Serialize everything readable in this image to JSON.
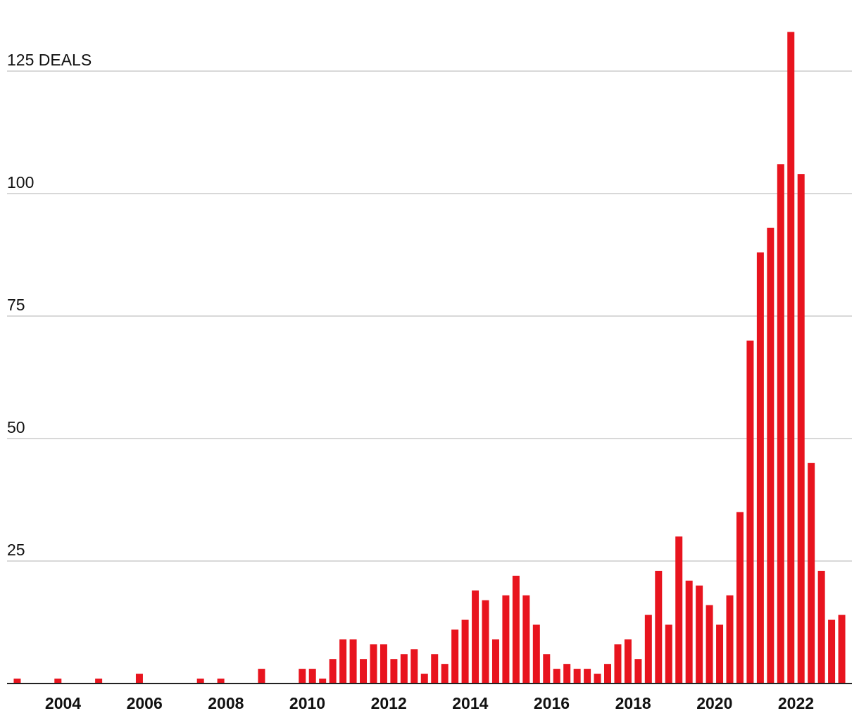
{
  "chart_data": {
    "type": "bar",
    "title": "",
    "xlabel": "",
    "ylabel": "",
    "y_unit_label": "DEALS",
    "ylim": [
      0,
      125
    ],
    "yticks": [
      25,
      50,
      75,
      100,
      125
    ],
    "ytick_labels": [
      "25",
      "50",
      "75",
      "100",
      "125 DEALS"
    ],
    "xlim": [
      2002.75,
      2023.5
    ],
    "xticks": [
      2004,
      2006,
      2008,
      2010,
      2012,
      2014,
      2016,
      2018,
      2020,
      2022
    ],
    "xtick_labels": [
      "2004",
      "2006",
      "2008",
      "2010",
      "2012",
      "2014",
      "2016",
      "2018",
      "2020",
      "2022"
    ],
    "grid": true,
    "bar_color": "#e8141e",
    "x": [
      2003.0,
      2003.25,
      2003.5,
      2003.75,
      2004.0,
      2004.25,
      2004.5,
      2004.75,
      2005.0,
      2005.25,
      2005.5,
      2005.75,
      2006.0,
      2006.25,
      2006.5,
      2006.75,
      2007.0,
      2007.25,
      2007.5,
      2007.75,
      2008.0,
      2008.25,
      2008.5,
      2008.75,
      2009.0,
      2009.25,
      2009.5,
      2009.75,
      2010.0,
      2010.25,
      2010.5,
      2010.75,
      2011.0,
      2011.25,
      2011.5,
      2011.75,
      2012.0,
      2012.25,
      2012.5,
      2012.75,
      2013.0,
      2013.25,
      2013.5,
      2013.75,
      2014.0,
      2014.25,
      2014.5,
      2014.75,
      2015.0,
      2015.25,
      2015.5,
      2015.75,
      2016.0,
      2016.25,
      2016.5,
      2016.75,
      2017.0,
      2017.25,
      2017.5,
      2017.75,
      2018.0,
      2018.25,
      2018.5,
      2018.75,
      2019.0,
      2019.25,
      2019.5,
      2019.75,
      2020.0,
      2020.25,
      2020.5,
      2020.75,
      2021.0,
      2021.25,
      2021.5,
      2021.75,
      2022.0,
      2022.25,
      2022.5,
      2022.75,
      2023.0,
      2023.25
    ],
    "values": [
      1,
      0,
      0,
      0,
      1,
      0,
      0,
      0,
      1,
      0,
      0,
      0,
      2,
      0,
      0,
      0,
      0,
      0,
      1,
      0,
      1,
      0,
      0,
      0,
      3,
      0,
      0,
      0,
      3,
      3,
      1,
      5,
      9,
      9,
      5,
      8,
      8,
      5,
      6,
      7,
      2,
      6,
      4,
      11,
      13,
      19,
      17,
      9,
      18,
      22,
      18,
      12,
      6,
      3,
      4,
      3,
      3,
      2,
      4,
      8,
      9,
      5,
      14,
      23,
      12,
      30,
      21,
      20,
      16,
      12,
      18,
      35,
      70,
      88,
      93,
      106,
      133,
      104,
      45,
      23,
      13,
      14
    ]
  }
}
